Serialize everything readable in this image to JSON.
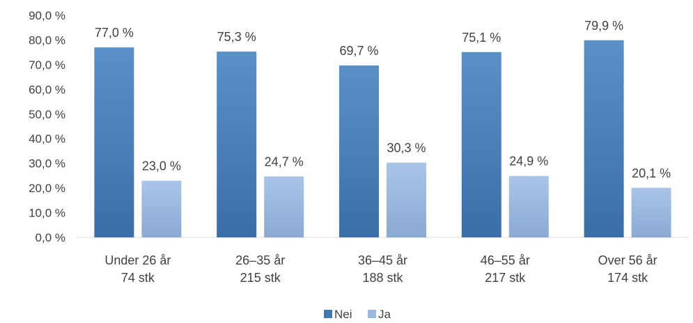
{
  "chart_data": {
    "type": "bar",
    "categories": [
      [
        "Under 26 år",
        "74 stk"
      ],
      [
        "26–35 år",
        "215 stk"
      ],
      [
        "36–45 år",
        "188 stk"
      ],
      [
        "46–55 år",
        "217 stk"
      ],
      [
        "Over 56 år",
        "174 stk"
      ]
    ],
    "series": [
      {
        "name": "Nei",
        "values": [
          77.0,
          75.3,
          69.7,
          75.1,
          79.9
        ],
        "labels": [
          "77,0 %",
          "75,3 %",
          "69,7 %",
          "75,1 %",
          "79,9 %"
        ]
      },
      {
        "name": "Ja",
        "values": [
          23.0,
          24.7,
          30.3,
          24.9,
          20.1
        ],
        "labels": [
          "23,0 %",
          "24,7 %",
          "30,3 %",
          "24,9 %",
          "20,1 %"
        ]
      }
    ],
    "ylim": [
      0,
      90
    ],
    "yticks": [
      "0,0 %",
      "10,0 %",
      "20,0 %",
      "30,0 %",
      "40,0 %",
      "50,0 %",
      "60,0 %",
      "70,0 %",
      "80,0 %",
      "90,0 %"
    ],
    "legend_position": "bottom",
    "grid": false,
    "colors": {
      "Nei": "#4a80b9",
      "Ja": "#9bb9e0"
    }
  }
}
